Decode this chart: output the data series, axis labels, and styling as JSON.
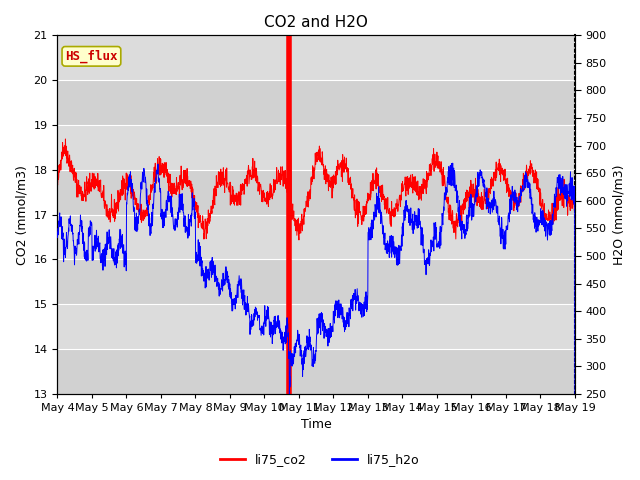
{
  "title": "CO2 and H2O",
  "xlabel": "Time",
  "ylabel_left": "CO2 (mmol/m3)",
  "ylabel_right": "H2O (mmol/m3)",
  "ylim_left": [
    13.0,
    21.0
  ],
  "ylim_right": [
    250,
    900
  ],
  "yticks_left": [
    13.0,
    14.0,
    15.0,
    16.0,
    17.0,
    18.0,
    19.0,
    20.0,
    21.0
  ],
  "yticks_right": [
    250,
    300,
    350,
    400,
    450,
    500,
    550,
    600,
    650,
    700,
    750,
    800,
    850,
    900
  ],
  "legend_entries": [
    "li75_co2",
    "li75_h2o"
  ],
  "legend_colors": [
    "red",
    "blue"
  ],
  "annotation_text": "HS_flux",
  "annotation_color": "#cc0000",
  "annotation_bg": "#ffffcc",
  "bg_color": "#dcdcdc",
  "title_fontsize": 11,
  "axis_label_fontsize": 9,
  "tick_label_fontsize": 8,
  "spike_day": 6.7,
  "num_days": 15
}
